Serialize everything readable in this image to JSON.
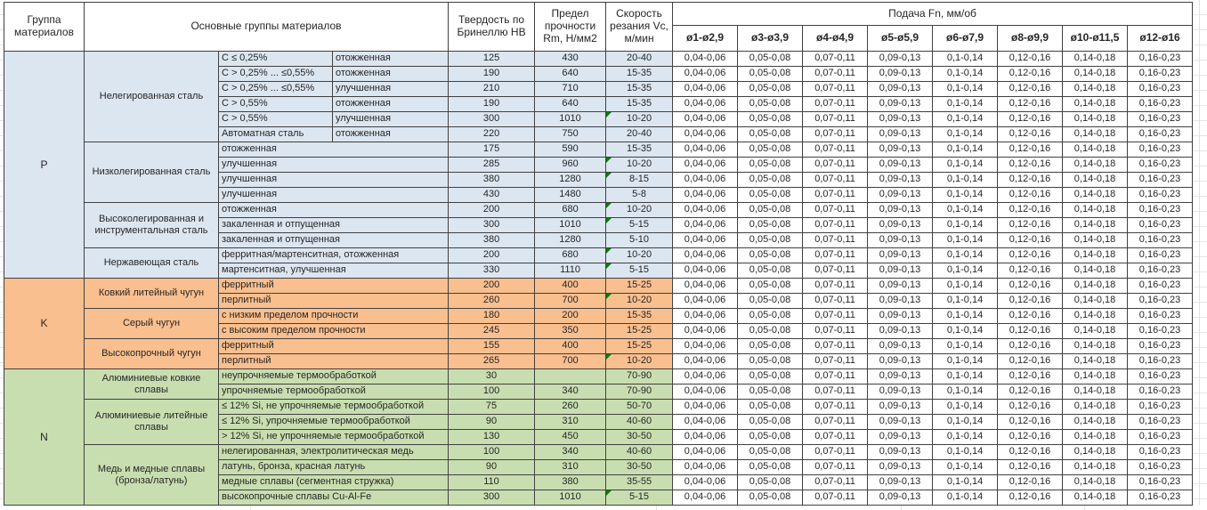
{
  "colors": {
    "group_p": "#dce6f1",
    "group_k": "#fabf8f",
    "group_n": "#c9deb0",
    "comment_marker": "#0c7a0c",
    "grid_line": "#404040"
  },
  "table": {
    "header": {
      "col_group": "Группа материалов",
      "col_main": "Основные группы материалов",
      "col_hb": "Твердость по Бринеллю HB",
      "col_rm": "Предел прочности Rm, Н/мм2",
      "col_vc": "Скорость резания Vc, м/мин",
      "feed_title": "Подача Fn, мм/об",
      "feed_cols": [
        "ø1-ø2,9",
        "ø3-ø3,9",
        "ø4-ø4,9",
        "ø5-ø5,9",
        "ø6-ø7,9",
        "ø8-ø9,9",
        "ø10-ø11,5",
        "ø12-ø16"
      ]
    },
    "feed_values": [
      "0,04-0,06",
      "0,05-0,08",
      "0,07-0,11",
      "0,09-0,13",
      "0,1-0,14",
      "0,12-0,16",
      "0,14-0,18",
      "0,16-0,23"
    ],
    "groups": [
      {
        "letter": "P",
        "color": "#dce6f1",
        "families": [
          {
            "name": "Нелегированная сталь",
            "rows": [
              {
                "criteria": "C ≤ 0,25%",
                "state": "отожженная",
                "hb": "125",
                "rm": "430",
                "vc": "20-40",
                "note": false
              },
              {
                "criteria": "C > 0,25% ... ≤0,55%",
                "state": "отожженная",
                "hb": "190",
                "rm": "640",
                "vc": "15-35",
                "note": false
              },
              {
                "criteria": "C > 0,25% ... ≤0,55%",
                "state": "улучшенная",
                "hb": "210",
                "rm": "710",
                "vc": "15-35",
                "note": false
              },
              {
                "criteria": "C > 0,55%",
                "state": "отожженная",
                "hb": "190",
                "rm": "640",
                "vc": "15-35",
                "note": false
              },
              {
                "criteria": "C > 0,55%",
                "state": "улучшенная",
                "hb": "300",
                "rm": "1010",
                "vc": "10-20",
                "note": true
              },
              {
                "criteria": "Автоматная сталь",
                "state": "отожженная",
                "hb": "220",
                "rm": "750",
                "vc": "20-40",
                "note": false
              }
            ]
          },
          {
            "name": "Низколегированная сталь",
            "rows": [
              {
                "desc": "отожженная",
                "hb": "175",
                "rm": "590",
                "vc": "15-35",
                "note": false
              },
              {
                "desc": "улучшенная",
                "hb": "285",
                "rm": "960",
                "vc": "10-20",
                "note": true
              },
              {
                "desc": "улучшенная",
                "hb": "380",
                "rm": "1280",
                "vc": "8-15",
                "note": true
              },
              {
                "desc": "улучшенная",
                "hb": "430",
                "rm": "1480",
                "vc": "5-8",
                "note": false
              }
            ]
          },
          {
            "name": "Высоколегированная и инструментальная сталь",
            "rows": [
              {
                "desc": "отожженная",
                "hb": "200",
                "rm": "680",
                "vc": "10-20",
                "note": true
              },
              {
                "desc": "закаленная и отпущенная",
                "hb": "300",
                "rm": "1010",
                "vc": "5-15",
                "note": true
              },
              {
                "desc": "закаленная и отпущенная",
                "hb": "380",
                "rm": "1280",
                "vc": "5-10",
                "note": false
              }
            ]
          },
          {
            "name": "Нержавеющая сталь",
            "rows": [
              {
                "desc": "ферритная/мартенситная, отожженная",
                "hb": "200",
                "rm": "680",
                "vc": "10-20",
                "note": true
              },
              {
                "desc": "мартенситная, улучшенная",
                "hb": "330",
                "rm": "1110",
                "vc": "5-15",
                "note": true
              }
            ]
          }
        ]
      },
      {
        "letter": "K",
        "color": "#fabf8f",
        "families": [
          {
            "name": "Ковкий литейный чугун",
            "rows": [
              {
                "desc": "ферритный",
                "hb": "200",
                "rm": "400",
                "vc": "15-25",
                "note": false
              },
              {
                "desc": "перлитный",
                "hb": "260",
                "rm": "700",
                "vc": "10-20",
                "note": true
              }
            ]
          },
          {
            "name": "Серый чугун",
            "rows": [
              {
                "desc": "с низким пределом прочности",
                "hb": "180",
                "rm": "200",
                "vc": "15-35",
                "note": false
              },
              {
                "desc": "с высоким пределом прочности",
                "hb": "245",
                "rm": "350",
                "vc": "15-25",
                "note": false
              }
            ]
          },
          {
            "name": "Высокопрочный чугун",
            "rows": [
              {
                "desc": "ферритный",
                "hb": "155",
                "rm": "400",
                "vc": "15-25",
                "note": false
              },
              {
                "desc": "перлитный",
                "hb": "265",
                "rm": "700",
                "vc": "10-20",
                "note": true
              }
            ]
          }
        ]
      },
      {
        "letter": "N",
        "color": "#c9deb0",
        "families": [
          {
            "name": "Алюминиевые ковкие сплавы",
            "rows": [
              {
                "desc": "неупрочняемые термообработкой",
                "hb": "30",
                "rm": "",
                "vc": "70-90",
                "note": false
              },
              {
                "desc": "упрочняемые термообработкой",
                "hb": "100",
                "rm": "340",
                "vc": "70-90",
                "note": false
              }
            ]
          },
          {
            "name": "Алюминиевые литейные сплавы",
            "rows": [
              {
                "desc": "≤ 12% Si, не упрочняемые термообработкой",
                "hb": "75",
                "rm": "260",
                "vc": "50-70",
                "note": false
              },
              {
                "desc": "≤ 12% Si, упрочняемые термообработкой",
                "hb": "90",
                "rm": "310",
                "vc": "40-60",
                "note": false
              },
              {
                "desc": "> 12% Si, не упрочняемые термообработкой",
                "hb": "130",
                "rm": "450",
                "vc": "30-50",
                "note": false
              }
            ]
          },
          {
            "name": "Медь и медные сплавы (бронза/латунь)",
            "rows": [
              {
                "desc": "нелегированная, электролитическая медь",
                "hb": "100",
                "rm": "340",
                "vc": "40-60",
                "note": false
              },
              {
                "desc": "латунь, бронза, красная латунь",
                "hb": "90",
                "rm": "310",
                "vc": "30-50",
                "note": false
              },
              {
                "desc": "медные сплавы (сегментная стружка)",
                "hb": "110",
                "rm": "380",
                "vc": "35-55",
                "note": false
              },
              {
                "desc": "высокопрочные сплавы Cu-Al-Fe",
                "hb": "300",
                "rm": "1010",
                "vc": "5-15",
                "note": true
              }
            ]
          }
        ]
      }
    ]
  }
}
